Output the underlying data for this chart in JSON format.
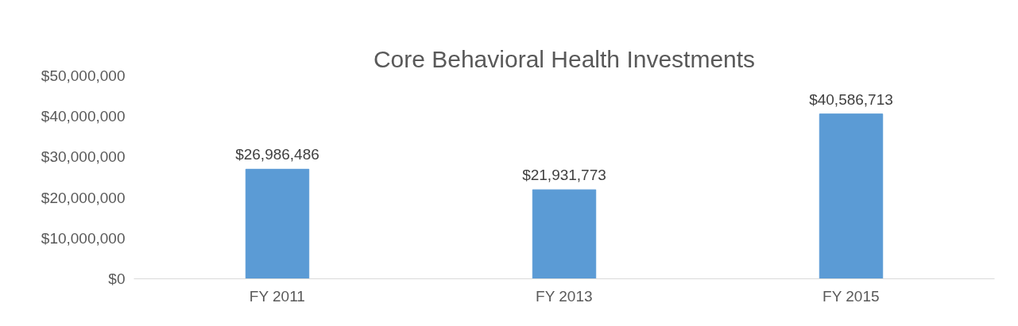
{
  "chart_data": {
    "type": "bar",
    "title": "Core Behavioral Health Investments",
    "categories": [
      "FY 2011",
      "FY 2013",
      "FY 2015"
    ],
    "values": [
      26986486,
      21931773,
      40586713
    ],
    "value_labels": [
      "$26,986,486",
      "$21,931,773",
      "$40,586,713"
    ],
    "color": "#5b9bd5",
    "ylim": [
      0,
      50000000
    ],
    "yticks": [
      {
        "value": 0,
        "label": "$0"
      },
      {
        "value": 10000000,
        "label": "$10,000,000"
      },
      {
        "value": 20000000,
        "label": "$20,000,000"
      },
      {
        "value": 30000000,
        "label": "$30,000,000"
      },
      {
        "value": 40000000,
        "label": "$40,000,000"
      },
      {
        "value": 50000000,
        "label": "$50,000,000"
      }
    ],
    "grid": false
  }
}
